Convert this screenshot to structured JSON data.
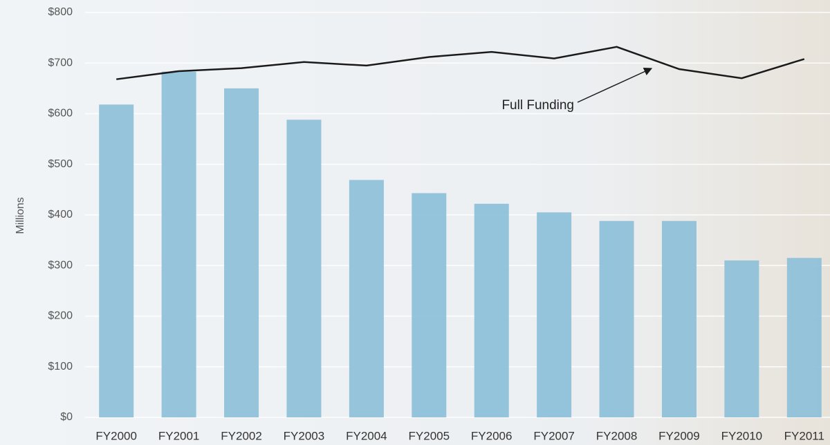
{
  "chart_data": {
    "type": "bar",
    "y_label": "Millions",
    "categories": [
      "FY2000",
      "FY2001",
      "FY2002",
      "FY2003",
      "FY2004",
      "FY2005",
      "FY2006",
      "FY2007",
      "FY2008",
      "FY2009",
      "FY2010",
      "FY2011"
    ],
    "series": [
      {
        "type": "bar",
        "color": "#8fc1d9",
        "values": [
          618,
          683,
          650,
          588,
          469,
          443,
          422,
          405,
          388,
          388,
          310,
          315
        ]
      },
      {
        "type": "line",
        "name": "Full Funding",
        "color": "#1a1a1a",
        "values": [
          668,
          684,
          690,
          702,
          695,
          712,
          722,
          709,
          732,
          688,
          670,
          708
        ]
      }
    ],
    "ylim": [
      0,
      800
    ],
    "yticks": [
      {
        "value": 0,
        "label": "$0"
      },
      {
        "value": 100,
        "label": "$100"
      },
      {
        "value": 200,
        "label": "$200"
      },
      {
        "value": 300,
        "label": "$300"
      },
      {
        "value": 400,
        "label": "$400"
      },
      {
        "value": 500,
        "label": "$500"
      },
      {
        "value": 600,
        "label": "$600"
      },
      {
        "value": 700,
        "label": "$700"
      },
      {
        "value": 800,
        "label": "$800"
      }
    ],
    "grid": true
  }
}
